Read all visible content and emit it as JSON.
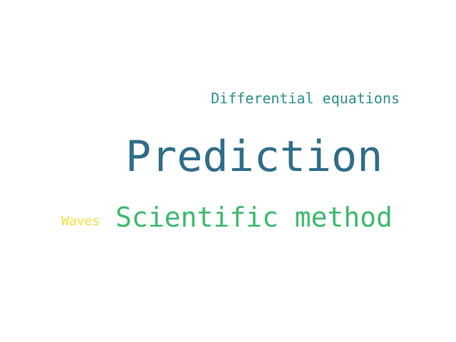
{
  "words": [
    {
      "text": "Differential equations",
      "color": "#31908e"
    },
    {
      "text": "Prediction",
      "color": "#2f6d8a"
    },
    {
      "text": "Scientific method",
      "color": "#3dba6e"
    },
    {
      "text": "Waves",
      "color": "#f1e03c"
    }
  ]
}
